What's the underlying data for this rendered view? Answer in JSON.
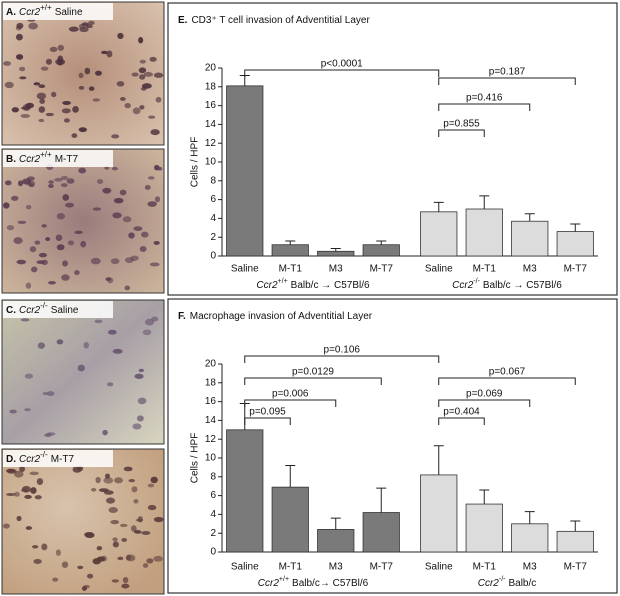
{
  "panels": [
    {
      "letter": "A.",
      "gene": "Ccr2",
      "genotype": "+/+",
      "condition": "Saline"
    },
    {
      "letter": "B.",
      "gene": "Ccr2",
      "genotype": "+/+",
      "condition": "M-T7"
    },
    {
      "letter": "C.",
      "gene": "Ccr2",
      "genotype": "-/-",
      "condition": "Saline"
    },
    {
      "letter": "D.",
      "gene": "Ccr2",
      "genotype": "-/-",
      "condition": "M-T7"
    }
  ],
  "chart_data": [
    {
      "type": "bar",
      "panel": "E.",
      "title": "CD3⁺ T cell invasion of Adventitial Layer",
      "y_label": "Cells / HPF",
      "categories": [
        "Saline",
        "M-T1",
        "M3",
        "M-T7",
        "Saline",
        "M-T1",
        "M3",
        "M-T7"
      ],
      "values": [
        18.1,
        1.2,
        0.5,
        1.2,
        4.7,
        5.0,
        3.7,
        2.6
      ],
      "errors": [
        1.1,
        0.4,
        0.3,
        0.4,
        1.0,
        1.4,
        0.8,
        0.8
      ],
      "colors": [
        "#7a7a7a",
        "#7a7a7a",
        "#7a7a7a",
        "#7a7a7a",
        "#dcdcdc",
        "#dcdcdc",
        "#dcdcdc",
        "#dcdcdc"
      ],
      "groups": [
        {
          "gene": "Ccr2",
          "genotype": "+/+",
          "text": "Balb/c → C57Bl/6"
        },
        {
          "gene": "Ccr2",
          "genotype": "-/-",
          "text": "Balb/c → C57Bl/6"
        }
      ],
      "annotations": [
        {
          "label": "p<0.0001",
          "from": 0,
          "to": 4
        },
        {
          "label": "p=0.187",
          "from": 4,
          "to": 7
        },
        {
          "label": "p=0.416",
          "from": 4,
          "to": 6
        },
        {
          "label": "p=0.855",
          "from": 4,
          "to": 5
        }
      ],
      "ylim": [
        0,
        20
      ],
      "yticks": [
        0,
        2,
        4,
        6,
        8,
        10,
        12,
        14,
        16,
        18,
        20
      ]
    },
    {
      "type": "bar",
      "panel": "F.",
      "title": "Macrophage invasion of Adventitial Layer",
      "y_label": "Cells / HPF",
      "categories": [
        "Saline",
        "M-T1",
        "M3",
        "M-T7",
        "Saline",
        "M-T1",
        "M3",
        "M-T7"
      ],
      "values": [
        13.0,
        6.9,
        2.4,
        4.2,
        8.2,
        5.1,
        3.0,
        2.2
      ],
      "errors": [
        2.8,
        2.3,
        1.2,
        2.6,
        3.1,
        1.5,
        1.3,
        1.1
      ],
      "colors": [
        "#7a7a7a",
        "#7a7a7a",
        "#7a7a7a",
        "#7a7a7a",
        "#dcdcdc",
        "#dcdcdc",
        "#dcdcdc",
        "#dcdcdc"
      ],
      "groups": [
        {
          "gene": "Ccr2",
          "genotype": "+/+",
          "text": "Balb/c→ C57Bl/6"
        },
        {
          "gene": "Ccr2",
          "genotype": "-/-",
          "text": "Balb/c"
        }
      ],
      "annotations": [
        {
          "label": "p=0.106",
          "from": 0,
          "to": 4
        },
        {
          "label": "p=0.0129",
          "from": 0,
          "to": 3
        },
        {
          "label": "p=0.006",
          "from": 0,
          "to": 2
        },
        {
          "label": "p=0.095",
          "from": 0,
          "to": 1
        },
        {
          "label": "p=0.067",
          "from": 4,
          "to": 7
        },
        {
          "label": "p=0.069",
          "from": 4,
          "to": 6
        },
        {
          "label": "p=0.404",
          "from": 4,
          "to": 5
        }
      ],
      "ylim": [
        0,
        20
      ],
      "yticks": [
        0,
        2,
        4,
        6,
        8,
        10,
        12,
        14,
        16,
        18,
        20
      ]
    }
  ]
}
